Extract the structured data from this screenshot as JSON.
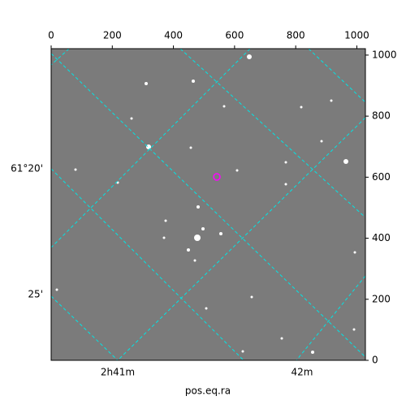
{
  "chart_data": {
    "type": "image",
    "xlabel": "pos.eq.ra",
    "xlim": [
      0,
      1028
    ],
    "ylim": [
      0,
      1021
    ],
    "xticks": [
      0,
      200,
      400,
      600,
      800,
      1000
    ],
    "yticks": [
      0,
      200,
      400,
      600,
      800,
      1000
    ],
    "ra_labels": [
      "2h41m",
      "42m"
    ],
    "dec_labels": [
      "61°20'",
      "25'"
    ],
    "marker": {
      "x": 542,
      "y": 601,
      "color": "#ff00ff"
    },
    "grid_color": "#00e5e5"
  }
}
